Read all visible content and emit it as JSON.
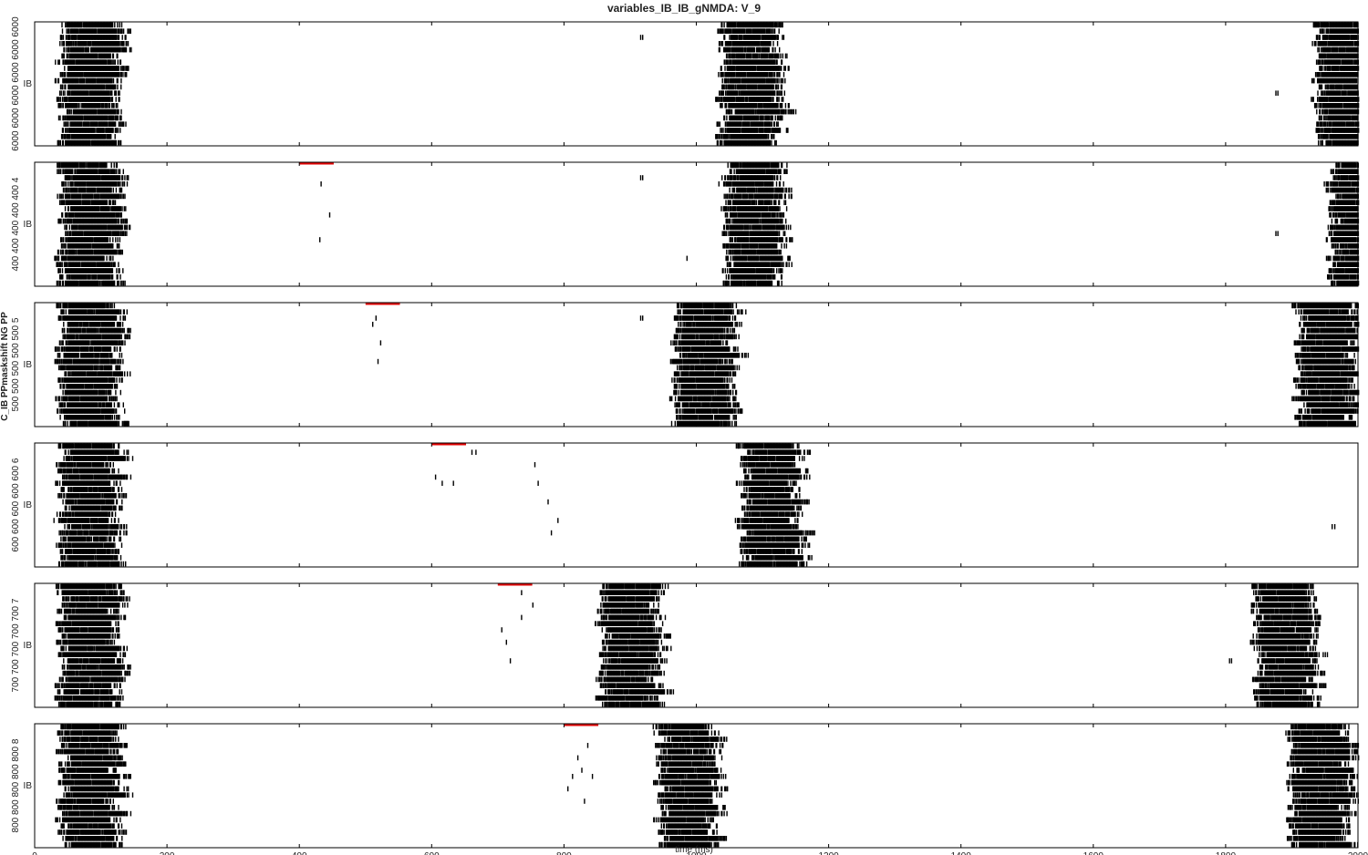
{
  "chart_data": {
    "type": "raster",
    "title": "variables_IB_IB_gNMDA: V_9",
    "xlabel": "time (ms)",
    "ylabel": "C_IB PPmaskshift NG PP",
    "xlim": [
      0,
      2000
    ],
    "xticks": [
      "0",
      "200",
      "400",
      "600",
      "800",
      "1000",
      "1200",
      "1400",
      "1600",
      "1800",
      "2000"
    ],
    "bursts": [
      {
        "start": 35,
        "end": 140
      },
      {
        "start": 958,
        "end": 1068
      },
      {
        "start": 1860,
        "end": 1970
      }
    ],
    "panels": [
      {
        "population": "IB",
        "ytick_left": "6000 6000 6000 6000 6000 6000",
        "ytick_mid": "IB",
        "marker": null,
        "burst_onsets": [
          35,
          1035,
          1935
        ],
        "stray_spikes": [
          [
            915,
            2
          ],
          [
            918,
            2
          ],
          [
            1875,
            11
          ],
          [
            1878,
            11
          ]
        ]
      },
      {
        "population": "IB",
        "ytick_left": "400 400 400 400 400 4",
        "ytick_mid": "IB",
        "marker": {
          "start": 400,
          "end": 452
        },
        "burst_onsets": [
          35,
          1040,
          1955
        ],
        "stray_spikes": [
          [
            432,
            3
          ],
          [
            445,
            8
          ],
          [
            430,
            12
          ],
          [
            915,
            2
          ],
          [
            918,
            2
          ],
          [
            985,
            15
          ],
          [
            1875,
            11
          ],
          [
            1878,
            11
          ]
        ]
      },
      {
        "population": "IB",
        "ytick_left": "500 500 500 500 500 5",
        "ytick_mid": "IB",
        "marker": {
          "start": 500,
          "end": 552
        },
        "burst_onsets": [
          35,
          965,
          1905
        ],
        "stray_spikes": [
          [
            510,
            3
          ],
          [
            515,
            2
          ],
          [
            522,
            6
          ],
          [
            518,
            9
          ],
          [
            915,
            2
          ],
          [
            918,
            2
          ]
        ]
      },
      {
        "population": "IB",
        "ytick_left": "600 600 600 600 600 6",
        "ytick_mid": "IB",
        "marker": {
          "start": 600,
          "end": 652
        },
        "burst_onsets": [
          35,
          1065
        ],
        "stray_spikes": [
          [
            605,
            5
          ],
          [
            615,
            6
          ],
          [
            632,
            6
          ],
          [
            660,
            1
          ],
          [
            666,
            1
          ],
          [
            755,
            3
          ],
          [
            760,
            6
          ],
          [
            775,
            9
          ],
          [
            790,
            12
          ],
          [
            780,
            14
          ],
          [
            1960,
            13
          ],
          [
            1964,
            13
          ]
        ]
      },
      {
        "population": "IB",
        "ytick_left": "700 700 700 700 700 7",
        "ytick_mid": "IB",
        "marker": {
          "start": 700,
          "end": 752
        },
        "burst_onsets": [
          35,
          852,
          1842
        ],
        "stray_spikes": [
          [
            705,
            7
          ],
          [
            712,
            9
          ],
          [
            718,
            12
          ],
          [
            735,
            5
          ],
          [
            752,
            3
          ],
          [
            735,
            1
          ],
          [
            1805,
            12
          ],
          [
            1808,
            12
          ]
        ]
      },
      {
        "population": "IB",
        "ytick_left": "800 800 800 800 800 8",
        "ytick_mid": "IB",
        "marker": {
          "start": 800,
          "end": 852
        },
        "burst_onsets": [
          35,
          940,
          1895
        ],
        "stray_spikes": [
          [
            805,
            10
          ],
          [
            812,
            8
          ],
          [
            820,
            5
          ],
          [
            826,
            7
          ],
          [
            835,
            3
          ],
          [
            842,
            8
          ],
          [
            830,
            12
          ]
        ]
      }
    ]
  }
}
